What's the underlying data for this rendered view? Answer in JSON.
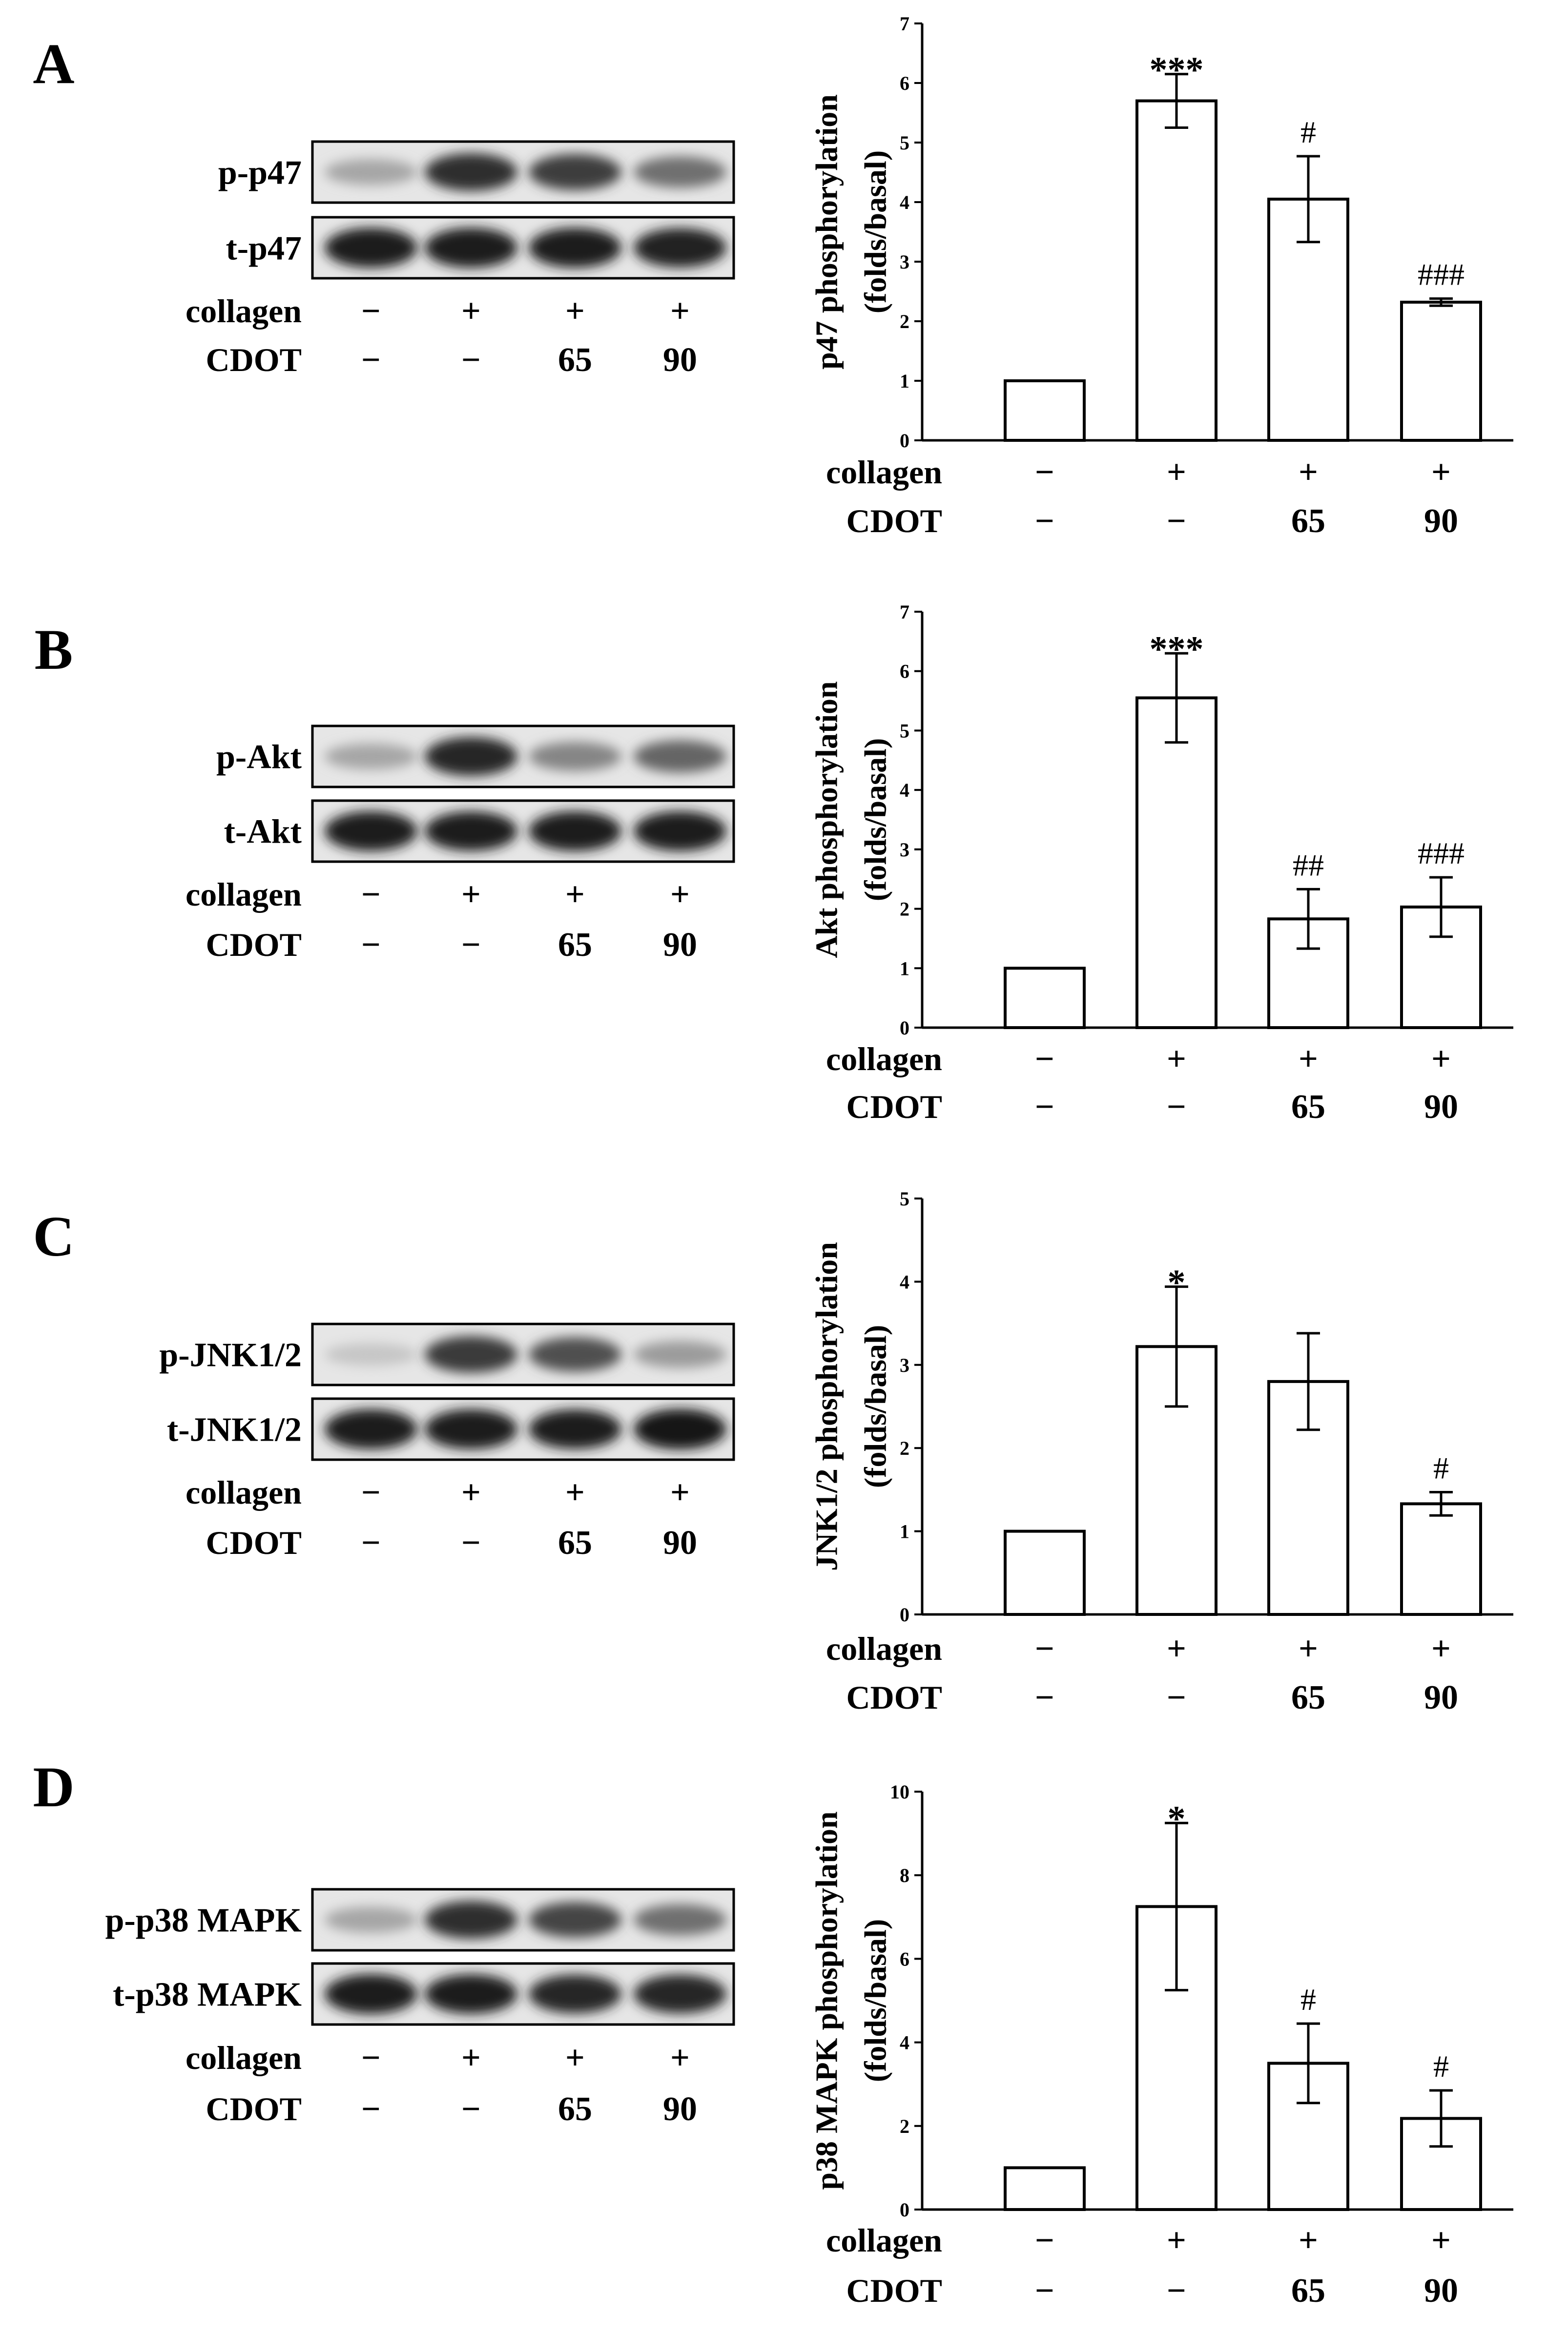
{
  "figure": {
    "panels": [
      {
        "letter": "A",
        "blot_rows": [
          {
            "label": "p-p47",
            "bands": [
              0.3,
              0.85,
              0.78,
              0.55
            ]
          },
          {
            "label": "t-p47",
            "bands": [
              0.95,
              0.95,
              0.95,
              0.92
            ]
          }
        ],
        "conditions": {
          "collagen_label": "collagen",
          "collagen": [
            "−",
            "+",
            "+",
            "+"
          ],
          "cdot_label": "CDOT",
          "cdot": [
            "−",
            "−",
            "65",
            "90"
          ]
        }
      },
      {
        "letter": "B",
        "blot_rows": [
          {
            "label": "p-Akt",
            "bands": [
              0.3,
              0.9,
              0.45,
              0.6
            ]
          },
          {
            "label": "t-Akt",
            "bands": [
              0.95,
              0.93,
              0.95,
              0.95
            ]
          }
        ],
        "conditions": {
          "collagen_label": "collagen",
          "collagen": [
            "−",
            "+",
            "+",
            "+"
          ],
          "cdot_label": "CDOT",
          "cdot": [
            "−",
            "−",
            "65",
            "90"
          ]
        }
      },
      {
        "letter": "C",
        "blot_rows": [
          {
            "label": "p-JNK1/2",
            "bands": [
              0.15,
              0.8,
              0.7,
              0.35
            ]
          },
          {
            "label": "t-JNK1/2",
            "bands": [
              0.95,
              0.95,
              0.93,
              0.98
            ]
          }
        ],
        "conditions": {
          "collagen_label": "collagen",
          "collagen": [
            "−",
            "+",
            "+",
            "+"
          ],
          "cdot_label": "CDOT",
          "cdot": [
            "−",
            "−",
            "65",
            "90"
          ]
        }
      },
      {
        "letter": "D",
        "blot_rows": [
          {
            "label": "p-p38 MAPK",
            "bands": [
              0.3,
              0.85,
              0.75,
              0.55
            ]
          },
          {
            "label": "t-p38 MAPK",
            "bands": [
              0.95,
              0.93,
              0.9,
              0.9
            ]
          }
        ],
        "conditions": {
          "collagen_label": "collagen",
          "collagen": [
            "−",
            "+",
            "+",
            "+"
          ],
          "cdot_label": "CDOT",
          "cdot": [
            "−",
            "−",
            "65",
            "90"
          ]
        }
      }
    ]
  },
  "chart_data": [
    {
      "type": "bar",
      "title": "",
      "ylabel_line1": "p47 phosphorylation",
      "ylabel_line2": "(folds/basal)",
      "ylim": [
        0,
        7
      ],
      "yticks": [
        "0",
        "1",
        "2",
        "3",
        "4",
        "5",
        "6",
        "7"
      ],
      "categories_collagen": [
        "−",
        "+",
        "+",
        "+"
      ],
      "categories_cdot": [
        "−",
        "−",
        "65",
        "90"
      ],
      "collagen_label": "collagen",
      "cdot_label": "CDOT",
      "values": [
        1.0,
        5.7,
        4.05,
        2.32
      ],
      "errors": [
        0,
        0.45,
        0.72,
        0.06
      ],
      "significance": [
        "",
        "***",
        "#",
        "###"
      ]
    },
    {
      "type": "bar",
      "title": "",
      "ylabel_line1": "Akt phosphorylation",
      "ylabel_line2": "(folds/basal)",
      "ylim": [
        0,
        7
      ],
      "yticks": [
        "0",
        "1",
        "2",
        "3",
        "4",
        "5",
        "6",
        "7"
      ],
      "categories_collagen": [
        "−",
        "+",
        "+",
        "+"
      ],
      "categories_cdot": [
        "−",
        "−",
        "65",
        "90"
      ],
      "collagen_label": "collagen",
      "cdot_label": "CDOT",
      "values": [
        1.0,
        5.55,
        1.83,
        2.03
      ],
      "errors": [
        0,
        0.75,
        0.5,
        0.5
      ],
      "significance": [
        "",
        "***",
        "##",
        "###"
      ]
    },
    {
      "type": "bar",
      "title": "",
      "ylabel_line1": "JNK1/2 phosphorylation",
      "ylabel_line2": "(folds/basal)",
      "ylim": [
        0,
        5
      ],
      "yticks": [
        "0",
        "1",
        "2",
        "3",
        "4",
        "5"
      ],
      "categories_collagen": [
        "−",
        "+",
        "+",
        "+"
      ],
      "categories_cdot": [
        "−",
        "−",
        "65",
        "90"
      ],
      "collagen_label": "collagen",
      "cdot_label": "CDOT",
      "values": [
        1.0,
        3.22,
        2.8,
        1.33
      ],
      "errors": [
        0,
        0.72,
        0.58,
        0.14
      ],
      "significance": [
        "",
        "*",
        "",
        "#"
      ]
    },
    {
      "type": "bar",
      "title": "",
      "ylabel_line1": "p38 MAPK phosphorylation",
      "ylabel_line2": "(folds/basal)",
      "ylim": [
        0,
        10
      ],
      "yticks": [
        "0",
        "2",
        "4",
        "6",
        "8",
        "10"
      ],
      "categories_collagen": [
        "−",
        "+",
        "+",
        "+"
      ],
      "categories_cdot": [
        "−",
        "−",
        "65",
        "90"
      ],
      "collagen_label": "collagen",
      "cdot_label": "CDOT",
      "values": [
        1.0,
        7.25,
        3.5,
        2.18
      ],
      "errors": [
        0,
        2.0,
        0.95,
        0.67
      ],
      "significance": [
        "",
        "*",
        "#",
        "#"
      ]
    }
  ]
}
